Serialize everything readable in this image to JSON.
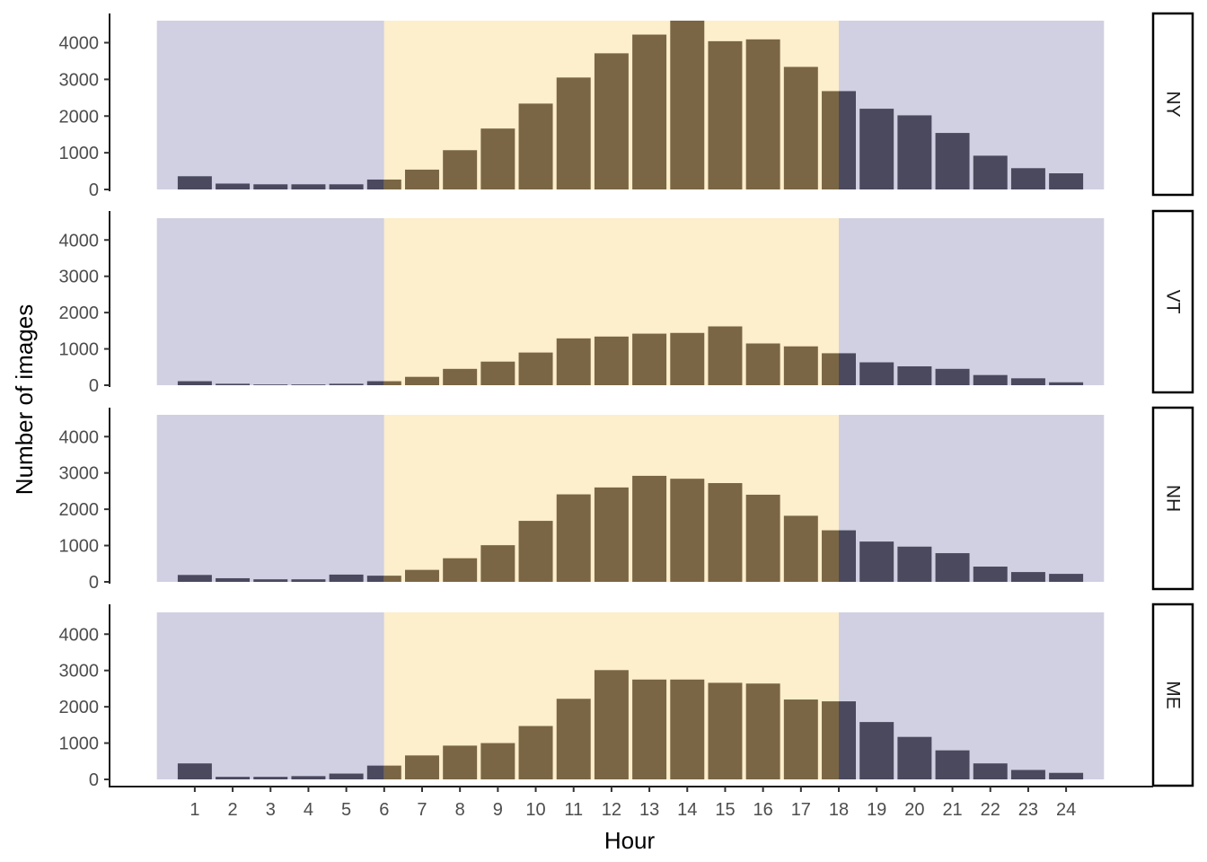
{
  "chart_data": {
    "type": "bar",
    "xlabel": "Hour",
    "ylabel": "Number of images",
    "x": [
      "1",
      "2",
      "3",
      "4",
      "5",
      "6",
      "7",
      "8",
      "9",
      "10",
      "11",
      "12",
      "13",
      "14",
      "15",
      "16",
      "17",
      "18",
      "19",
      "20",
      "21",
      "22",
      "23",
      "24"
    ],
    "ylim": [
      0,
      4600
    ],
    "yticks": [
      "0",
      "1000",
      "2000",
      "3000",
      "4000"
    ],
    "shading": {
      "night_color": "#d1d0e2",
      "day_color": "#fdeecc",
      "day_start_hour": 6,
      "day_end_hour": 18
    },
    "bar_colors": {
      "night": "#4a495e",
      "day": "#7a6644"
    },
    "panels": [
      {
        "strip_label": "NY",
        "values": [
          360,
          160,
          140,
          140,
          140,
          270,
          540,
          1070,
          1660,
          2340,
          3050,
          3710,
          4220,
          4600,
          4040,
          4090,
          3340,
          2680,
          2200,
          2020,
          1540,
          920,
          580,
          440
        ]
      },
      {
        "strip_label": "VT",
        "values": [
          110,
          40,
          20,
          20,
          40,
          110,
          230,
          450,
          650,
          900,
          1290,
          1340,
          1420,
          1440,
          1620,
          1150,
          1070,
          880,
          630,
          520,
          450,
          280,
          190,
          80
        ]
      },
      {
        "strip_label": "NH",
        "values": [
          190,
          100,
          70,
          70,
          200,
          170,
          330,
          650,
          1010,
          1680,
          2410,
          2600,
          2920,
          2840,
          2720,
          2400,
          1820,
          1420,
          1110,
          970,
          790,
          420,
          270,
          220
        ]
      },
      {
        "strip_label": "ME",
        "values": [
          440,
          70,
          70,
          90,
          160,
          380,
          660,
          930,
          1000,
          1470,
          2220,
          3010,
          2750,
          2750,
          2660,
          2640,
          2200,
          2150,
          1580,
          1170,
          800,
          440,
          260,
          180
        ]
      }
    ]
  }
}
